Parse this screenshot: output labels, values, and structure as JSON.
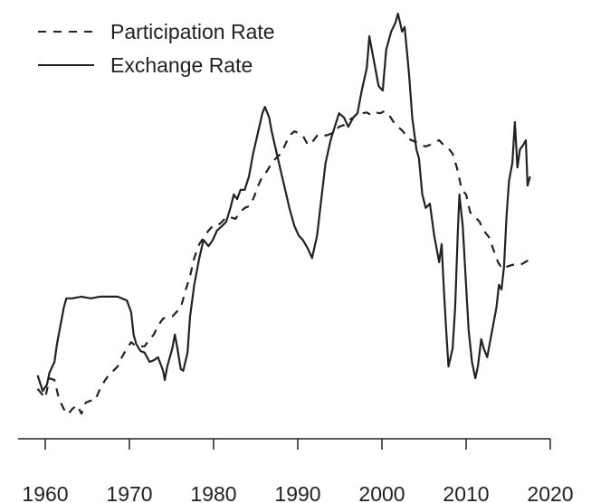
{
  "chart_data": {
    "type": "line",
    "title": "",
    "xlabel": "",
    "ylabel": "",
    "xlim": [
      1956.6,
      2019.8
    ],
    "ylim": [
      0,
      100
    ],
    "xticks": [
      1960,
      1970,
      1980,
      1990,
      2000,
      2010,
      2020
    ],
    "xtick_labels": [
      "1960",
      "1970",
      "1980",
      "1990",
      "2000",
      "2010",
      "2020"
    ],
    "grid": false,
    "legend_position": "top-left",
    "series": [
      {
        "name": "Participation Rate",
        "style": "dashed",
        "color": "#222222",
        "x": [
          1959.1,
          1960.0,
          1960.5,
          1961.1,
          1961.6,
          1962.2,
          1962.7,
          1963.2,
          1963.8,
          1964.3,
          1964.8,
          1965.4,
          1965.9,
          1966.5,
          1967.0,
          1967.5,
          1968.1,
          1968.6,
          1969.1,
          1969.7,
          1970.2,
          1970.8,
          1971.8,
          1972.4,
          1972.9,
          1973.4,
          1974.0,
          1975.1,
          1976.1,
          1976.7,
          1977.2,
          1977.7,
          1978.3,
          1979.4,
          1979.9,
          1980.4,
          1981.0,
          1981.5,
          1982.0,
          1982.6,
          1983.1,
          1983.7,
          1984.2,
          1984.7,
          1985.3,
          1985.8,
          1986.3,
          1986.9,
          1987.4,
          1988.0,
          1988.5,
          1989.0,
          1989.6,
          1990.1,
          1990.6,
          1991.2,
          1991.7,
          1992.3,
          1992.8,
          1993.3,
          1993.9,
          1994.4,
          1994.9,
          1995.5,
          1996.0,
          1996.6,
          1997.1,
          1997.6,
          1998.2,
          1998.7,
          1999.2,
          1999.8,
          2000.3,
          2000.9,
          2001.4,
          2001.9,
          2002.5,
          2003.0,
          2003.5,
          2004.1,
          2004.6,
          2005.2,
          2005.7,
          2006.2,
          2006.8,
          2007.3,
          2007.8,
          2008.4,
          2008.9,
          2009.5,
          2010.0,
          2010.5,
          2011.1,
          2011.6,
          2012.1,
          2012.7,
          2013.2,
          2013.8,
          2014.3,
          2014.8,
          2015.4,
          2015.9,
          2016.4,
          2017.0,
          2017.5
        ],
        "y": [
          10.8,
          8.6,
          13.3,
          12.9,
          8.6,
          6.0,
          4.7,
          6.0,
          6.9,
          4.9,
          7.5,
          8.0,
          8.0,
          10.8,
          12.5,
          14.0,
          15.1,
          16.1,
          18.3,
          20.4,
          21.9,
          20.9,
          20.9,
          22.6,
          23.7,
          25.8,
          27.5,
          28.0,
          30.1,
          34.4,
          37.6,
          41.9,
          45.2,
          48.4,
          49.5,
          49.5,
          50.5,
          51.6,
          51.6,
          51.2,
          52.7,
          53.8,
          54.2,
          55.9,
          59.1,
          61.3,
          62.4,
          64.5,
          65.6,
          66.7,
          68.8,
          71.0,
          72.0,
          71.6,
          71.0,
          68.8,
          69.4,
          71.0,
          71.4,
          71.0,
          71.4,
          72.0,
          73.1,
          73.5,
          74.6,
          75.3,
          76.3,
          76.3,
          76.5,
          75.9,
          76.5,
          76.3,
          76.8,
          75.7,
          74.2,
          73.1,
          72.0,
          70.5,
          69.9,
          69.4,
          68.8,
          68.4,
          68.8,
          69.4,
          69.9,
          68.8,
          68.2,
          66.7,
          63.4,
          58.1,
          57.0,
          52.7,
          51.6,
          50.5,
          48.4,
          46.9,
          44.1,
          40.9,
          39.3,
          39.8,
          40.2,
          40.4,
          40.2,
          40.9,
          41.5
        ]
      },
      {
        "name": "Exchange Rate",
        "style": "solid",
        "color": "#222222",
        "x": [
          1959.1,
          1959.7,
          1960.2,
          1960.5,
          1961.1,
          1961.4,
          1961.7,
          1962.2,
          1962.5,
          1963.2,
          1964.3,
          1965.4,
          1966.5,
          1967.5,
          1968.6,
          1969.7,
          1970.2,
          1970.5,
          1970.8,
          1971.3,
          1971.8,
          1972.4,
          1972.9,
          1973.4,
          1974.0,
          1974.2,
          1974.5,
          1975.1,
          1975.4,
          1975.7,
          1976.1,
          1976.4,
          1976.9,
          1977.2,
          1977.7,
          1978.3,
          1978.8,
          1979.4,
          1979.9,
          1980.4,
          1981.0,
          1981.5,
          1982.0,
          1982.4,
          1982.8,
          1983.2,
          1983.7,
          1984.2,
          1984.7,
          1985.3,
          1985.8,
          1986.1,
          1986.6,
          1986.9,
          1987.4,
          1988.0,
          1988.5,
          1989.0,
          1989.6,
          1990.1,
          1990.6,
          1991.2,
          1991.7,
          1992.3,
          1992.8,
          1993.3,
          1993.9,
          1994.4,
          1994.9,
          1995.5,
          1996.0,
          1996.6,
          1997.1,
          1997.6,
          1998.2,
          1998.5,
          1998.7,
          1999.2,
          1999.6,
          2000.1,
          2000.5,
          2001.1,
          2001.6,
          2001.9,
          2002.4,
          2002.7,
          2003.2,
          2003.6,
          2004.1,
          2004.4,
          2004.8,
          2005.2,
          2005.7,
          2006.2,
          2006.8,
          2007.1,
          2007.3,
          2007.6,
          2007.9,
          2008.4,
          2008.7,
          2009.0,
          2009.2,
          2009.6,
          2009.9,
          2010.3,
          2010.7,
          2011.1,
          2011.4,
          2011.8,
          2012.1,
          2012.5,
          2012.9,
          2013.3,
          2013.6,
          2013.9,
          2014.2,
          2014.5,
          2014.8,
          2015.1,
          2015.5,
          2015.8,
          2016.1,
          2016.4,
          2016.8,
          2017.1,
          2017.3,
          2017.6
        ],
        "y": [
          14.0,
          10.3,
          11.8,
          14.6,
          17.2,
          21.5,
          24.7,
          30.1,
          32.3,
          32.3,
          32.7,
          32.3,
          32.7,
          32.7,
          32.7,
          31.8,
          29.0,
          23.7,
          21.5,
          19.8,
          19.4,
          17.2,
          17.6,
          18.3,
          15.1,
          12.9,
          16.1,
          20.4,
          23.7,
          20.4,
          15.5,
          15.1,
          19.4,
          28.0,
          35.5,
          41.9,
          46.2,
          44.7,
          46.2,
          48.4,
          49.5,
          50.5,
          53.8,
          57.0,
          55.9,
          58.1,
          58.1,
          61.3,
          66.7,
          72.0,
          76.3,
          77.8,
          75.3,
          72.0,
          67.7,
          62.4,
          58.1,
          53.8,
          49.5,
          47.3,
          46.2,
          44.1,
          41.9,
          47.3,
          55.9,
          64.5,
          69.9,
          73.1,
          76.3,
          75.3,
          73.1,
          75.3,
          76.3,
          81.7,
          87.1,
          94.6,
          92.5,
          87.1,
          82.8,
          81.7,
          91.4,
          95.7,
          97.8,
          100,
          95.7,
          96.8,
          86.0,
          75.3,
          67.7,
          65.6,
          57.0,
          53.8,
          54.8,
          47.3,
          40.9,
          45.2,
          36.6,
          25.8,
          16.1,
          20.4,
          30.1,
          47.3,
          57.0,
          49.5,
          38.7,
          24.7,
          17.2,
          13.3,
          16.1,
          22.6,
          20.4,
          18.3,
          22.6,
          26.9,
          30.1,
          35.5,
          34.4,
          39.8,
          51.6,
          60.2,
          64.5,
          74.2,
          63.4,
          67.7,
          68.8,
          69.9,
          59.1,
          61.3
        ]
      }
    ]
  }
}
